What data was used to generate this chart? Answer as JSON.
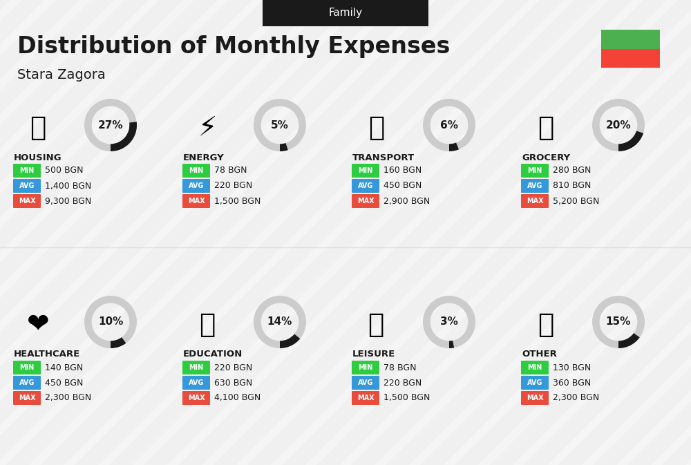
{
  "title": "Distribution of Monthly Expenses",
  "subtitle": "Stara Zagora",
  "tag": "Family",
  "bg_color": "#f0f0f0",
  "categories": [
    {
      "name": "HOUSING",
      "percent": 27,
      "min_val": "500 BGN",
      "avg_val": "1,400 BGN",
      "max_val": "9,300 BGN",
      "icon": "housing",
      "row": 0,
      "col": 0
    },
    {
      "name": "ENERGY",
      "percent": 5,
      "min_val": "78 BGN",
      "avg_val": "220 BGN",
      "max_val": "1,500 BGN",
      "icon": "energy",
      "row": 0,
      "col": 1
    },
    {
      "name": "TRANSPORT",
      "percent": 6,
      "min_val": "160 BGN",
      "avg_val": "450 BGN",
      "max_val": "2,900 BGN",
      "icon": "transport",
      "row": 0,
      "col": 2
    },
    {
      "name": "GROCERY",
      "percent": 20,
      "min_val": "280 BGN",
      "avg_val": "810 BGN",
      "max_val": "5,200 BGN",
      "icon": "grocery",
      "row": 0,
      "col": 3
    },
    {
      "name": "HEALTHCARE",
      "percent": 10,
      "min_val": "140 BGN",
      "avg_val": "450 BGN",
      "max_val": "2,300 BGN",
      "icon": "healthcare",
      "row": 1,
      "col": 0
    },
    {
      "name": "EDUCATION",
      "percent": 14,
      "min_val": "220 BGN",
      "avg_val": "630 BGN",
      "max_val": "4,100 BGN",
      "icon": "education",
      "row": 1,
      "col": 1
    },
    {
      "name": "LEISURE",
      "percent": 3,
      "min_val": "78 BGN",
      "avg_val": "220 BGN",
      "max_val": "1,500 BGN",
      "icon": "leisure",
      "row": 1,
      "col": 2
    },
    {
      "name": "OTHER",
      "percent": 15,
      "min_val": "130 BGN",
      "avg_val": "360 BGN",
      "max_val": "2,300 BGN",
      "icon": "other",
      "row": 1,
      "col": 3
    }
  ],
  "color_min": "#2ecc40",
  "color_avg": "#3498db",
  "color_max": "#e74c3c",
  "color_donut_filled": "#1a1a1a",
  "color_donut_empty": "#cccccc",
  "flag_green": "#4caf50",
  "flag_red": "#f44336"
}
